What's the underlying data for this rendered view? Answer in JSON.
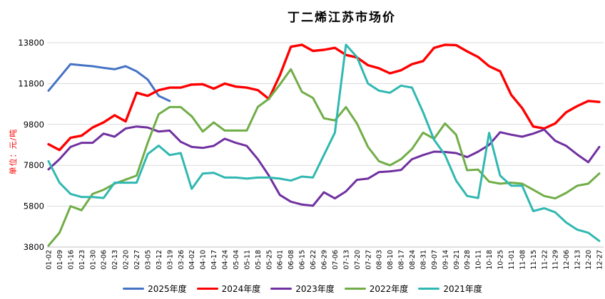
{
  "title": "丁二烯江苏市场价",
  "y_axis": {
    "unit_label": "单位：元/吨",
    "ticks": [
      "3800",
      "5800",
      "7800",
      "9800",
      "11800",
      "13800"
    ]
  },
  "colors": {
    "background": "#ffffff",
    "gridline": "#d9d9d9",
    "axis_line": "#bfbfbf",
    "tick_text": "#000000",
    "unit_label": "#ff0000",
    "title": "#000000"
  },
  "chart_data": {
    "type": "line",
    "title": "丁二烯江苏市场价",
    "ylabel": "单位：元/吨",
    "ylim": [
      3800,
      13800
    ],
    "y_tick_step": 2000,
    "grid": "horizontal",
    "legend_position": "bottom",
    "categories": [
      "01-02",
      "01-09",
      "01-16",
      "01-23",
      "01-30",
      "02-06",
      "02-13",
      "02-20",
      "02-27",
      "03-05",
      "03-12",
      "03-19",
      "03-26",
      "04-02",
      "04-10",
      "04-17",
      "04-24",
      "05-04",
      "05-11",
      "05-18",
      "05-25",
      "06-01",
      "06-08",
      "06-15",
      "06-22",
      "06-29",
      "07-06",
      "07-13",
      "07-20",
      "07-27",
      "08-03",
      "08-10",
      "08-17",
      "08-24",
      "08-31",
      "09-07",
      "09-14",
      "09-21",
      "09-28",
      "10-11",
      "10-18",
      "10-25",
      "11-01",
      "11-08",
      "11-15",
      "11-22",
      "11-29",
      "12-06",
      "12-13",
      "12-20",
      "12-27"
    ],
    "series": [
      {
        "name": "2025年度",
        "color": "#4472c4",
        "values": [
          11450,
          12100,
          12750,
          12700,
          12650,
          12570,
          12500,
          12650,
          12400,
          12000,
          11200,
          10950
        ]
      },
      {
        "name": "2024年度",
        "color": "#fe0000",
        "values": [
          8830,
          8550,
          9150,
          9250,
          9650,
          9900,
          10250,
          9950,
          11350,
          11200,
          11480,
          11600,
          11600,
          11750,
          11770,
          11550,
          11800,
          11650,
          11600,
          11480,
          11050,
          12200,
          13600,
          13700,
          13400,
          13450,
          13550,
          13200,
          13080,
          12700,
          12550,
          12300,
          12450,
          12750,
          12900,
          13550,
          13700,
          13680,
          13380,
          13100,
          12650,
          12400,
          11250,
          10600,
          9700,
          9600,
          9850,
          10400,
          10700,
          10950,
          10900
        ]
      },
      {
        "name": "2023年度",
        "color": "#7030a0",
        "values": [
          7600,
          8100,
          8700,
          8900,
          8900,
          9350,
          9200,
          9600,
          9700,
          9650,
          9450,
          9500,
          8950,
          8700,
          8650,
          8750,
          9100,
          8900,
          8750,
          8100,
          7300,
          6350,
          6020,
          5880,
          5820,
          6480,
          6180,
          6520,
          7090,
          7150,
          7470,
          7500,
          7570,
          8100,
          8300,
          8470,
          8450,
          8400,
          8200,
          8470,
          8800,
          9420,
          9300,
          9200,
          9350,
          9550,
          9000,
          8750,
          8330,
          7950,
          8700
        ]
      },
      {
        "name": "2022年度",
        "color": "#70ad47",
        "values": [
          3870,
          4500,
          5800,
          5600,
          6400,
          6600,
          6900,
          7100,
          7300,
          8900,
          10300,
          10650,
          10650,
          10200,
          9450,
          9900,
          9500,
          9500,
          9500,
          10660,
          11050,
          11750,
          12500,
          11400,
          11100,
          10100,
          10000,
          10650,
          9850,
          8700,
          8000,
          7800,
          8100,
          8600,
          9400,
          9100,
          9850,
          9300,
          7560,
          7590,
          7000,
          6900,
          6950,
          6900,
          6600,
          6300,
          6180,
          6450,
          6800,
          6900,
          7400
        ]
      },
      {
        "name": "2021年度",
        "color": "#2fb8b1",
        "values": [
          8000,
          6950,
          6400,
          6250,
          6250,
          6200,
          6950,
          6950,
          6950,
          8350,
          8760,
          8300,
          8400,
          6650,
          7400,
          7430,
          7200,
          7200,
          7150,
          7200,
          7200,
          7150,
          7050,
          7250,
          7200,
          8300,
          9400,
          13700,
          13100,
          11800,
          11450,
          11350,
          11700,
          11600,
          10400,
          9050,
          8300,
          7050,
          6300,
          6200,
          9390,
          7300,
          6800,
          6800,
          5560,
          5700,
          5500,
          5000,
          4650,
          4500,
          4100
        ]
      }
    ]
  }
}
